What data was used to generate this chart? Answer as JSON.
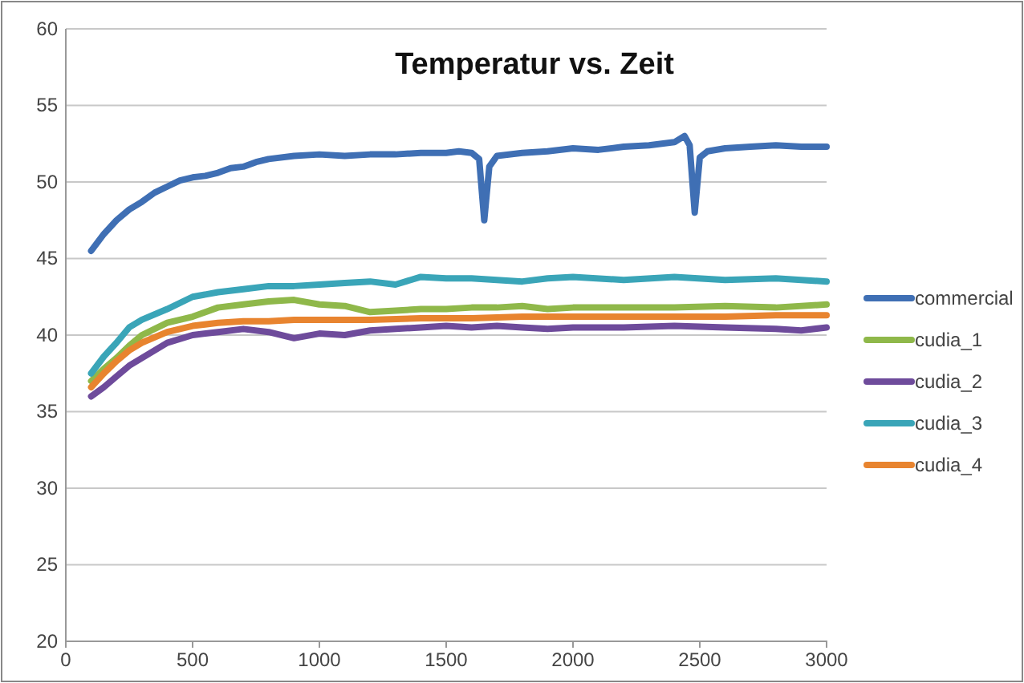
{
  "chart_data": {
    "type": "line",
    "title": "Temperatur vs. Zeit",
    "xlim": [
      0,
      3000
    ],
    "xticks": [
      0,
      500,
      1000,
      1500,
      2000,
      2500,
      3000
    ],
    "ylim": [
      20,
      60
    ],
    "yticks": [
      20,
      25,
      30,
      35,
      40,
      45,
      50,
      55,
      60
    ],
    "grid": "y",
    "legend": "right",
    "marker": "none",
    "line_style": "solid",
    "series": [
      {
        "name": "commercial",
        "color": "#3f6fb4",
        "x": [
          100,
          150,
          200,
          250,
          300,
          350,
          400,
          450,
          500,
          550,
          600,
          650,
          700,
          750,
          800,
          900,
          1000,
          1100,
          1200,
          1300,
          1400,
          1500,
          1550,
          1600,
          1630,
          1650,
          1670,
          1700,
          1800,
          1900,
          2000,
          2100,
          2200,
          2300,
          2400,
          2440,
          2460,
          2480,
          2500,
          2530,
          2600,
          2700,
          2800,
          2900,
          3000
        ],
        "values": [
          45.5,
          46.6,
          47.5,
          48.2,
          48.7,
          49.3,
          49.7,
          50.1,
          50.3,
          50.4,
          50.6,
          50.9,
          51.0,
          51.3,
          51.5,
          51.7,
          51.8,
          51.7,
          51.8,
          51.8,
          51.9,
          51.9,
          52.0,
          51.9,
          51.5,
          47.5,
          51.0,
          51.7,
          51.9,
          52.0,
          52.2,
          52.1,
          52.3,
          52.4,
          52.6,
          53.0,
          52.4,
          48.0,
          51.6,
          52.0,
          52.2,
          52.3,
          52.4,
          52.3,
          52.3
        ]
      },
      {
        "name": "cudia_1",
        "color": "#8fb84a",
        "x": [
          100,
          150,
          200,
          250,
          300,
          400,
          500,
          600,
          700,
          800,
          900,
          1000,
          1100,
          1200,
          1300,
          1400,
          1500,
          1600,
          1700,
          1800,
          1900,
          2000,
          2200,
          2400,
          2600,
          2800,
          3000
        ],
        "values": [
          37.0,
          37.8,
          38.5,
          39.3,
          40.0,
          40.8,
          41.2,
          41.8,
          42.0,
          42.2,
          42.3,
          42.0,
          41.9,
          41.5,
          41.6,
          41.7,
          41.7,
          41.8,
          41.8,
          41.9,
          41.7,
          41.8,
          41.8,
          41.8,
          41.9,
          41.8,
          42.0
        ]
      },
      {
        "name": "cudia_2",
        "color": "#6e4b9b",
        "x": [
          100,
          150,
          200,
          250,
          300,
          400,
          500,
          600,
          700,
          800,
          900,
          1000,
          1100,
          1200,
          1300,
          1400,
          1500,
          1600,
          1700,
          1800,
          1900,
          2000,
          2200,
          2400,
          2600,
          2800,
          2900,
          3000
        ],
        "values": [
          36.0,
          36.6,
          37.3,
          38.0,
          38.5,
          39.5,
          40.0,
          40.2,
          40.4,
          40.2,
          39.8,
          40.1,
          40.0,
          40.3,
          40.4,
          40.5,
          40.6,
          40.5,
          40.6,
          40.5,
          40.4,
          40.5,
          40.5,
          40.6,
          40.5,
          40.4,
          40.3,
          40.5
        ]
      },
      {
        "name": "cudia_3",
        "color": "#3aa5b8",
        "x": [
          100,
          150,
          200,
          250,
          300,
          400,
          500,
          600,
          700,
          800,
          900,
          1000,
          1100,
          1200,
          1300,
          1400,
          1500,
          1600,
          1700,
          1800,
          1900,
          2000,
          2200,
          2400,
          2600,
          2800,
          3000
        ],
        "values": [
          37.5,
          38.6,
          39.5,
          40.5,
          41.0,
          41.7,
          42.5,
          42.8,
          43.0,
          43.2,
          43.2,
          43.3,
          43.4,
          43.5,
          43.3,
          43.8,
          43.7,
          43.7,
          43.6,
          43.5,
          43.7,
          43.8,
          43.6,
          43.8,
          43.6,
          43.7,
          43.5
        ]
      },
      {
        "name": "cudia_4",
        "color": "#e8842f",
        "x": [
          100,
          150,
          200,
          250,
          300,
          400,
          500,
          600,
          700,
          800,
          900,
          1000,
          1200,
          1400,
          1500,
          1600,
          1800,
          2000,
          2200,
          2400,
          2600,
          2800,
          3000
        ],
        "values": [
          36.6,
          37.5,
          38.3,
          39.0,
          39.5,
          40.2,
          40.6,
          40.8,
          40.9,
          40.9,
          41.0,
          41.0,
          41.0,
          41.1,
          41.1,
          41.1,
          41.2,
          41.2,
          41.2,
          41.2,
          41.2,
          41.3,
          41.3
        ]
      }
    ]
  }
}
